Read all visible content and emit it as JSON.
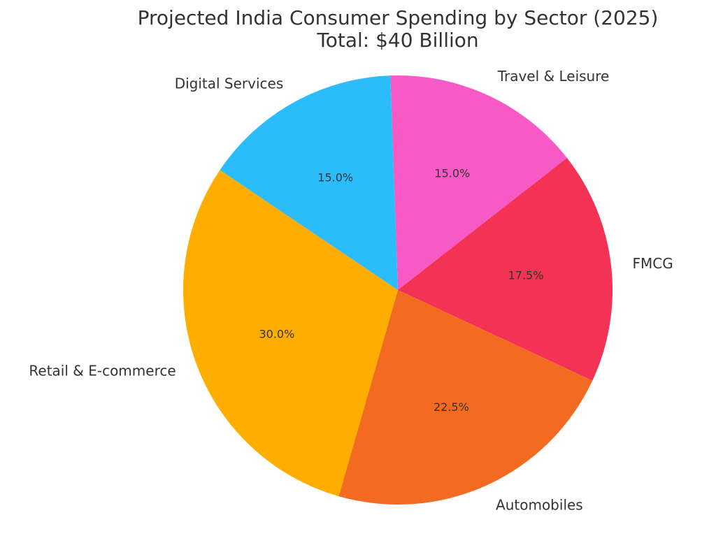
{
  "chart_data": {
    "type": "pie",
    "title": "Projected India Consumer Spending by Sector (2025)",
    "subtitle": "Total: $40 Billion",
    "start_angle_deg": 92,
    "direction": "clockwise",
    "slices": [
      {
        "label": "Travel & Leisure",
        "value": 15.0,
        "pct_label": "15.0%",
        "color": "#F75AC4"
      },
      {
        "label": "FMCG",
        "value": 17.5,
        "pct_label": "17.5%",
        "color": "#F43256"
      },
      {
        "label": "Automobiles",
        "value": 22.5,
        "pct_label": "22.5%",
        "color": "#F26B21"
      },
      {
        "label": "Retail & E-commerce",
        "value": 30.0,
        "pct_label": "30.0%",
        "color": "#FFAE00"
      },
      {
        "label": "Digital Services",
        "value": 15.0,
        "pct_label": "15.0%",
        "color": "#2BBCFB"
      }
    ]
  }
}
